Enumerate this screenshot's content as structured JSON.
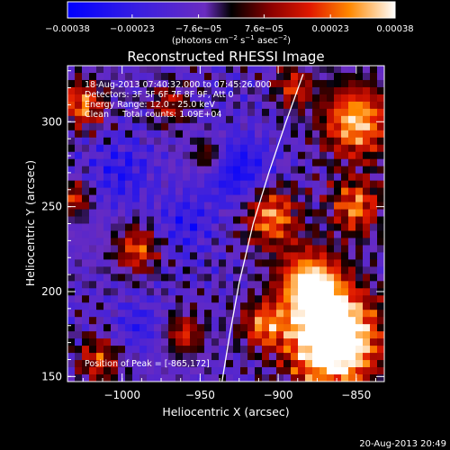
{
  "chart_data": {
    "type": "heatmap",
    "title": "Reconstructed RHESSI Image",
    "xlabel": "Heliocentric X (arcsec)",
    "ylabel": "Heliocentric Y (arcsec)",
    "xlim": [
      -1035,
      -832
    ],
    "ylim": [
      147,
      333
    ],
    "xticks": [
      -1000,
      -950,
      -900,
      -850
    ],
    "xtick_labels": [
      "−1000",
      "−950",
      "−900",
      "−850"
    ],
    "yticks": [
      150,
      200,
      250,
      300
    ],
    "ytick_labels": [
      "150",
      "200",
      "250",
      "300"
    ],
    "grid": false,
    "colorbar": {
      "min": -0.00038,
      "max": 0.00038,
      "ticks": [
        -0.00038,
        -0.00023,
        -7.6e-05,
        7.6e-05,
        0.00023,
        0.00038
      ],
      "tick_labels": [
        "−0.00038",
        "−0.00023",
        "−7.6e−05",
        "7.6e−05",
        "0.00023",
        "0.00038"
      ],
      "unit_main": "(photons cm",
      "unit_exp1": "−2",
      "unit_mid": " s",
      "unit_exp2": "−1",
      "unit_end": " asec",
      "unit_exp3": "−2",
      "unit_close": ")",
      "colorscale": [
        {
          "stop": 0.0,
          "color": "#0000ff"
        },
        {
          "stop": 0.22,
          "color": "#3a1fe0"
        },
        {
          "stop": 0.42,
          "color": "#6a2cc0"
        },
        {
          "stop": 0.5,
          "color": "#000000"
        },
        {
          "stop": 0.62,
          "color": "#8a0000"
        },
        {
          "stop": 0.74,
          "color": "#e01800"
        },
        {
          "stop": 0.86,
          "color": "#ff8800"
        },
        {
          "stop": 1.0,
          "color": "#ffffff"
        }
      ]
    },
    "annotations": [
      "18-Aug-2013 07:40:32.000 to 07:45:26.000",
      "Detectors: 3F 5F 6F 7F 8F 9F, Att 0",
      "Energy Range: 12.0 - 25.0 keV",
      "Clean     Total counts: 1.09E+04"
    ],
    "peak_label": "Position of Peak = [-865,172]",
    "peak": {
      "x": -865,
      "y": 172
    },
    "limb": [
      {
        "x": -936,
        "y": 147
      },
      {
        "x": -931,
        "y": 175
      },
      {
        "x": -925,
        "y": 205
      },
      {
        "x": -916,
        "y": 240
      },
      {
        "x": -906,
        "y": 270
      },
      {
        "x": -895,
        "y": 300
      },
      {
        "x": -884,
        "y": 328
      }
    ]
  },
  "footer": {
    "timestamp": "20-Aug-2013 20:49"
  },
  "colors": {
    "background": "#000000",
    "axes": "#ffffff",
    "limb": "#ffffff"
  }
}
